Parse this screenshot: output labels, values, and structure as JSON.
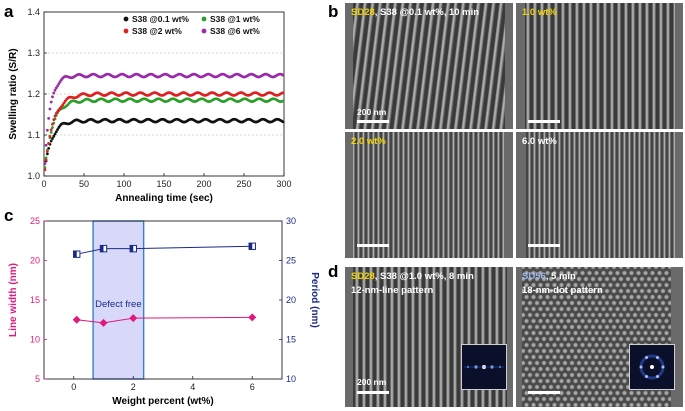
{
  "panels": {
    "a": "a",
    "b": "b",
    "c": "c",
    "d": "d"
  },
  "chart_data": [
    {
      "panel": "a",
      "type": "scatter",
      "xlabel": "Annealing time (sec)",
      "ylabel": "Swelling ratio (S/R)",
      "xlim": [
        0,
        300
      ],
      "ylim": [
        1.0,
        1.4
      ],
      "xticks": [
        "0",
        "50",
        "100",
        "150",
        "200",
        "250",
        "300"
      ],
      "yticks": [
        "1.0",
        "1.1",
        "1.2",
        "1.3",
        "1.4"
      ],
      "grid": "horizontal dashed",
      "legend": "top",
      "series": [
        {
          "name": "S38 @0.1 wt%",
          "color": "#111111",
          "plateau": 1.135,
          "tau": 9
        },
        {
          "name": "S38 @1 wt%",
          "color": "#2aa02a",
          "plateau": 1.185,
          "tau": 10
        },
        {
          "name": "S38 @2 wt%",
          "color": "#e02020",
          "plateau": 1.2,
          "tau": 11
        },
        {
          "name": "S38 @6 wt%",
          "color": "#9a2aa8",
          "plateau": 1.245,
          "tau": 7
        }
      ]
    },
    {
      "panel": "c",
      "type": "line",
      "xlabel": "Weight percent (wt%)",
      "ylabel_left": "Line width (nm)",
      "ylabel_right": "Period (nm)",
      "xlim": [
        -1,
        7
      ],
      "ylim_left": [
        5,
        25
      ],
      "ylim_right": [
        10,
        30
      ],
      "xticks": [
        "0",
        "2",
        "4",
        "6"
      ],
      "yticks_left": [
        "5",
        "10",
        "15",
        "20",
        "25"
      ],
      "yticks_right": [
        "10",
        "15",
        "20",
        "25",
        "30"
      ],
      "shaded_region": {
        "x": [
          0.65,
          2.35
        ],
        "label": "Defect free"
      },
      "series": [
        {
          "name": "Line width",
          "axis": "left",
          "color": "#e0197d",
          "marker": "diamond",
          "x": [
            0.1,
            1,
            2,
            6
          ],
          "y": [
            12.5,
            12.1,
            12.7,
            12.8
          ]
        },
        {
          "name": "Period",
          "axis": "right",
          "color": "#1a2a8a",
          "marker": "half-square",
          "x": [
            0.1,
            1,
            2,
            6
          ],
          "y": [
            25.8,
            26.5,
            26.5,
            26.8
          ]
        }
      ]
    }
  ],
  "sem_b": [
    {
      "id": "b1",
      "label_highlight": "SD28",
      "label_rest": ", S38 @0.1 wt%, 10 min",
      "scale": "200 nm"
    },
    {
      "id": "b2",
      "label_highlight": "1.0 wt%",
      "label_rest": ""
    },
    {
      "id": "b3",
      "label_highlight": "2.0 wt%",
      "label_rest": ""
    },
    {
      "id": "b4",
      "label_highlight": "",
      "label_rest": "6.0 wt%"
    }
  ],
  "sem_d": [
    {
      "id": "d1",
      "label_highlight": "SD28",
      "label_rest": ", S38 @1.0 wt%, 8 min",
      "line2": "12-nm-line pattern",
      "scale": "200 nm"
    },
    {
      "id": "d2",
      "label_highlight": "SD56",
      "label_rest": ", 5 min",
      "line2": "18-nm-dot pattern"
    }
  ]
}
